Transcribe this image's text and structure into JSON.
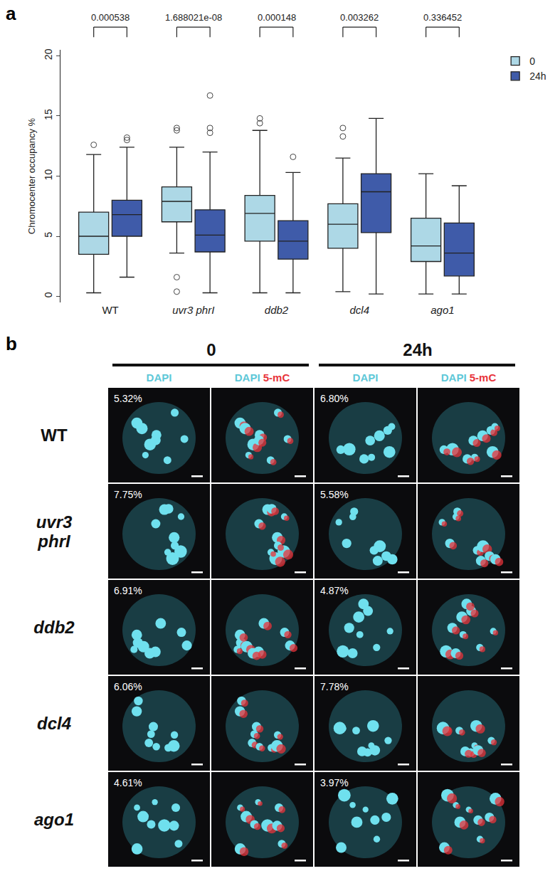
{
  "panel_labels": [
    "a",
    "b"
  ],
  "chart_data": {
    "type": "box",
    "y_label": "Chromocenter occupancy %",
    "categories": [
      "WT",
      "uvr3 phrI",
      "ddb2",
      "dcl4",
      "ago1"
    ],
    "series": [
      {
        "name": "0",
        "color": "#add8e6",
        "lower": [
          0.3,
          3.6,
          0.3,
          0.4,
          0.2
        ],
        "q1": [
          3.5,
          6.2,
          4.6,
          4.0,
          2.9
        ],
        "median": [
          5.0,
          7.9,
          6.9,
          6.0,
          4.2
        ],
        "q3": [
          7.0,
          9.1,
          8.4,
          7.7,
          6.5
        ],
        "upper": [
          11.8,
          12.4,
          13.8,
          11.5,
          10.2
        ],
        "outliers": [
          [
            12.6
          ],
          [
            13.8,
            14.0,
            1.6,
            0.4
          ],
          [
            14.4,
            14.8
          ],
          [
            13.3,
            14.0
          ],
          []
        ]
      },
      {
        "name": "24h",
        "color": "#3f5ba9",
        "lower": [
          1.6,
          0.3,
          0.3,
          0.2,
          0.2
        ],
        "q1": [
          5.0,
          3.7,
          3.1,
          5.3,
          1.7
        ],
        "median": [
          6.8,
          5.1,
          4.6,
          8.7,
          3.6
        ],
        "q3": [
          8.0,
          7.2,
          6.3,
          10.2,
          6.1
        ],
        "upper": [
          12.4,
          12.0,
          10.3,
          14.8,
          9.2
        ],
        "outliers": [
          [
            13.0,
            13.2
          ],
          [
            13.6,
            14.0,
            16.7
          ],
          [
            11.6
          ],
          [],
          []
        ]
      }
    ],
    "comparisons": [
      {
        "category": "WT",
        "text": "0.000538"
      },
      {
        "category": "uvr3 phrI",
        "text": "1.688021e-08"
      },
      {
        "category": "ddb2",
        "text": "0.000148"
      },
      {
        "category": "dcl4",
        "text": "0.003262"
      },
      {
        "category": "ago1",
        "text": "0.336452"
      }
    ],
    "ylim": [
      -0.5,
      20.5
    ],
    "yticks": [
      0,
      5,
      10,
      15,
      20
    ],
    "grid": false,
    "legend": "right"
  },
  "micrographs": {
    "timepoints": [
      "0",
      "24h"
    ],
    "channels": [
      [
        "DAPI"
      ],
      [
        "DAPI",
        "5-mC"
      ]
    ],
    "rows": [
      {
        "genotype": "WT",
        "italic": false,
        "occupancy": [
          "5.32%",
          "6.80%"
        ]
      },
      {
        "genotype": "uvr3 phrI",
        "italic": true,
        "occupancy": [
          "7.75%",
          "5.58%"
        ]
      },
      {
        "genotype": "ddb2",
        "italic": true,
        "occupancy": [
          "6.91%",
          "4.87%"
        ]
      },
      {
        "genotype": "dcl4",
        "italic": true,
        "occupancy": [
          "6.06%",
          "7.78%"
        ]
      },
      {
        "genotype": "ago1",
        "italic": true,
        "occupancy": [
          "4.61%",
          "3.97%"
        ]
      }
    ]
  }
}
